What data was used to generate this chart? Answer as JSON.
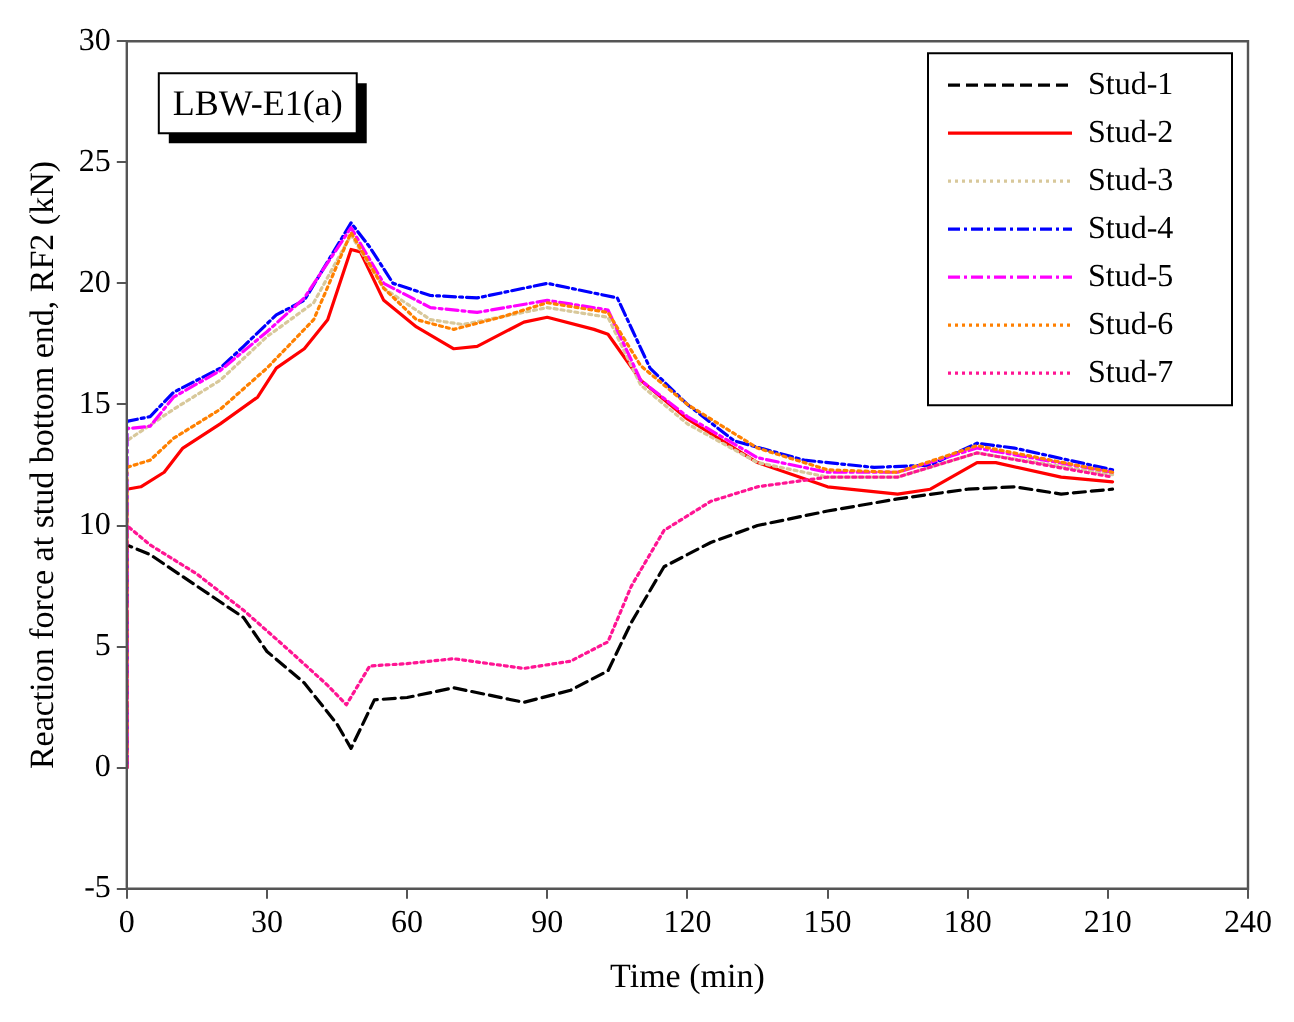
{
  "chart_data": {
    "type": "line",
    "xlabel": "Time (min)",
    "ylabel": "Reaction force at stud bottom end, RF2 (kN)",
    "annotations": [
      "LBW-E1(a)"
    ],
    "xlim": [
      0,
      240
    ],
    "xticks": [
      0,
      30,
      60,
      90,
      120,
      150,
      180,
      210,
      240
    ],
    "ylim": [
      -5,
      30
    ],
    "yticks": [
      -5,
      0,
      5,
      10,
      15,
      20,
      25,
      30
    ],
    "grid": false,
    "legend": "top right",
    "marker": "none",
    "series": [
      {
        "name": "Stud-1",
        "color": "#000000",
        "line_style": "dashed",
        "x": [
          0,
          0,
          5,
          15,
          25,
          30,
          38,
          45,
          48,
          53,
          60,
          70,
          85,
          95,
          103,
          108,
          115,
          125,
          135,
          150,
          165,
          180,
          190,
          200,
          211
        ],
        "values": [
          0,
          9.2,
          8.8,
          7.5,
          6.2,
          4.8,
          3.5,
          1.8,
          0.8,
          2.8,
          2.9,
          3.3,
          2.7,
          3.2,
          4,
          6,
          8.3,
          9.3,
          10,
          10.6,
          11.1,
          11.5,
          11.6,
          11.3,
          11.5
        ]
      },
      {
        "name": "Stud-2",
        "color": "#ff0000",
        "line_style": "solid",
        "x": [
          0,
          0,
          3,
          8,
          12,
          20,
          28,
          32,
          38,
          43,
          48,
          50,
          55,
          62,
          70,
          75,
          85,
          90,
          100,
          103,
          110,
          120,
          135,
          150,
          165,
          172,
          182,
          186,
          200,
          211
        ],
        "values": [
          0,
          11.5,
          11.6,
          12.2,
          13.2,
          14.2,
          15.3,
          16.5,
          17.3,
          18.5,
          21.4,
          21.3,
          19.3,
          18.2,
          17.3,
          17.4,
          18.4,
          18.6,
          18.1,
          17.9,
          16,
          14.4,
          12.6,
          11.6,
          11.3,
          11.5,
          12.6,
          12.6,
          12,
          11.8
        ]
      },
      {
        "name": "Stud-3",
        "color": "#d8c89a",
        "line_style": "dotted",
        "x": [
          0,
          0,
          10,
          20,
          30,
          40,
          48,
          55,
          65,
          72,
          90,
          103,
          110,
          120,
          135,
          150,
          165,
          182,
          211
        ],
        "values": [
          0,
          13.5,
          14.8,
          16,
          17.8,
          19.2,
          22,
          19.8,
          18.5,
          18.3,
          19,
          18.6,
          15.8,
          14.2,
          12.6,
          12,
          12,
          13,
          12.1
        ]
      },
      {
        "name": "Stud-4",
        "color": "#0000ff",
        "line_style": "dashdot",
        "x": [
          0,
          0,
          5,
          10,
          20,
          25,
          32,
          38,
          48,
          52,
          57,
          65,
          75,
          90,
          100,
          105,
          112,
          120,
          130,
          145,
          160,
          172,
          182,
          190,
          211
        ],
        "values": [
          0,
          14.3,
          14.5,
          15.5,
          16.5,
          17.4,
          18.7,
          19.3,
          22.5,
          21.5,
          20,
          19.5,
          19.4,
          20,
          19.6,
          19.4,
          16.5,
          15,
          13.5,
          12.7,
          12.4,
          12.5,
          13.4,
          13.2,
          12.3
        ]
      },
      {
        "name": "Stud-5",
        "color": "#ff00ff",
        "line_style": "dashdot",
        "x": [
          0,
          0,
          5,
          10,
          20,
          30,
          38,
          48,
          55,
          65,
          75,
          90,
          103,
          110,
          120,
          135,
          150,
          165,
          182,
          211
        ],
        "values": [
          0,
          14,
          14.1,
          15.3,
          16.4,
          18,
          19.4,
          22.3,
          20,
          19,
          18.8,
          19.3,
          18.9,
          16,
          14.5,
          12.8,
          12.2,
          12.2,
          13.2,
          12.2
        ]
      },
      {
        "name": "Stud-6",
        "color": "#ff8000",
        "line_style": "dotted",
        "x": [
          0,
          0,
          5,
          10,
          20,
          30,
          40,
          48,
          55,
          62,
          70,
          80,
          90,
          103,
          110,
          120,
          135,
          150,
          165,
          182,
          211
        ],
        "values": [
          0,
          12.4,
          12.7,
          13.6,
          14.8,
          16.5,
          18.5,
          22.1,
          19.8,
          18.5,
          18.1,
          18.6,
          19.2,
          18.8,
          16.6,
          15,
          13.2,
          12.3,
          12.2,
          13.3,
          12.2
        ]
      },
      {
        "name": "Stud-7",
        "color": "#ff1493",
        "line_style": "dotted",
        "x": [
          0,
          0,
          5,
          15,
          25,
          35,
          43,
          47,
          52,
          60,
          70,
          85,
          95,
          103,
          108,
          115,
          125,
          135,
          150,
          165,
          182,
          211
        ],
        "values": [
          0,
          10,
          9.2,
          8,
          6.5,
          4.8,
          3.4,
          2.6,
          4.2,
          4.3,
          4.5,
          4.1,
          4.4,
          5.2,
          7.5,
          9.8,
          11,
          11.6,
          12,
          12,
          13,
          12
        ]
      }
    ]
  }
}
